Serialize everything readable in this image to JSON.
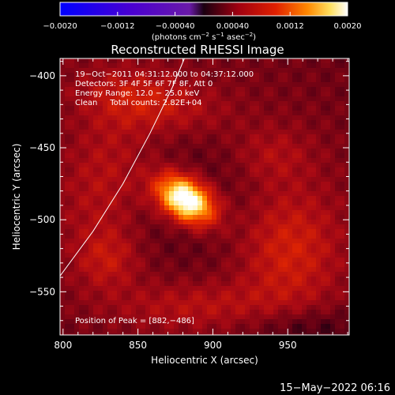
{
  "chart_data": {
    "type": "heatmap",
    "title": "Reconstructed RHESSI Image",
    "xlabel": "Heliocentric X (arcsec)",
    "ylabel": "Heliocentric Y (arcsec)",
    "xlim": [
      798,
      991
    ],
    "ylim": [
      -580,
      -388
    ],
    "x_ticks": [
      {
        "value": 800,
        "label": "800"
      },
      {
        "value": 850,
        "label": "850"
      },
      {
        "value": 900,
        "label": "900"
      },
      {
        "value": 950,
        "label": "950"
      }
    ],
    "y_ticks": [
      {
        "value": -400,
        "label": "−400"
      },
      {
        "value": -450,
        "label": "−450"
      },
      {
        "value": -500,
        "label": "−500"
      },
      {
        "value": -550,
        "label": "−550"
      }
    ],
    "colorbar": {
      "range": [
        -0.002,
        0.002
      ],
      "ticks": [
        {
          "value": -0.002,
          "label": "−0.0020"
        },
        {
          "value": -0.0012,
          "label": "−0.0012"
        },
        {
          "value": -0.0004,
          "label": "−0.00040"
        },
        {
          "value": 0.0004,
          "label": "0.00040"
        },
        {
          "value": 0.0012,
          "label": "0.0012"
        },
        {
          "value": 0.002,
          "label": "0.0020"
        }
      ],
      "units_text": "(photons cm",
      "units_exp1": "−2",
      "units_mid": " s",
      "units_exp2": "−1",
      "units_end": " asec",
      "units_exp3": "−2",
      "units_close": ")"
    },
    "info_lines": [
      "19−Oct−2011 04:31:12.000 to 04:37:12.000",
      "Detectors: 3F 4F 5F 6F 7F 8F, Att 0",
      "Energy Range: 12.0 − 25.0 keV",
      "Clean     Total counts: 2.82E+04"
    ],
    "peak_label": "Position of Peak = [882,−486]",
    "peak": {
      "x": 882,
      "y": -486
    },
    "limb_line": [
      {
        "x": 798,
        "y": -539
      },
      {
        "x": 820,
        "y": -508
      },
      {
        "x": 840,
        "y": -475
      },
      {
        "x": 858,
        "y": -440
      },
      {
        "x": 873,
        "y": -408
      },
      {
        "x": 881,
        "y": -388
      }
    ],
    "sources": [
      {
        "x": 882,
        "y": -486,
        "sx": 15,
        "sy": 10,
        "angle": -35,
        "amp": 1.0
      },
      {
        "x": 880,
        "y": -485,
        "sx": 60,
        "sy": 42,
        "angle": -32,
        "amp": -0.22
      },
      {
        "x": 885,
        "y": -487,
        "sx": 95,
        "sy": 70,
        "angle": -30,
        "amp": 0.18
      },
      {
        "x": 830,
        "y": -470,
        "sx": 22,
        "sy": 38,
        "angle": -10,
        "amp": 0.2
      },
      {
        "x": 858,
        "y": -418,
        "sx": 32,
        "sy": 14,
        "angle": -10,
        "amp": 0.22
      },
      {
        "x": 950,
        "y": -520,
        "sx": 24,
        "sy": 30,
        "angle": 0,
        "amp": 0.26
      },
      {
        "x": 890,
        "y": -560,
        "sx": 40,
        "sy": 12,
        "angle": 0,
        "amp": 0.16
      },
      {
        "x": 830,
        "y": -528,
        "sx": 14,
        "sy": 14,
        "angle": 0,
        "amp": 0.16
      },
      {
        "x": 940,
        "y": -455,
        "sx": 18,
        "sy": 14,
        "angle": 0,
        "amp": 0.12
      },
      {
        "x": 960,
        "y": -575,
        "sx": 30,
        "sy": 10,
        "angle": 0,
        "amp": -0.14
      }
    ],
    "baseline": 0.12,
    "ripple": 0.06
  },
  "footer": {
    "date": "15−May−2022 06:16"
  }
}
